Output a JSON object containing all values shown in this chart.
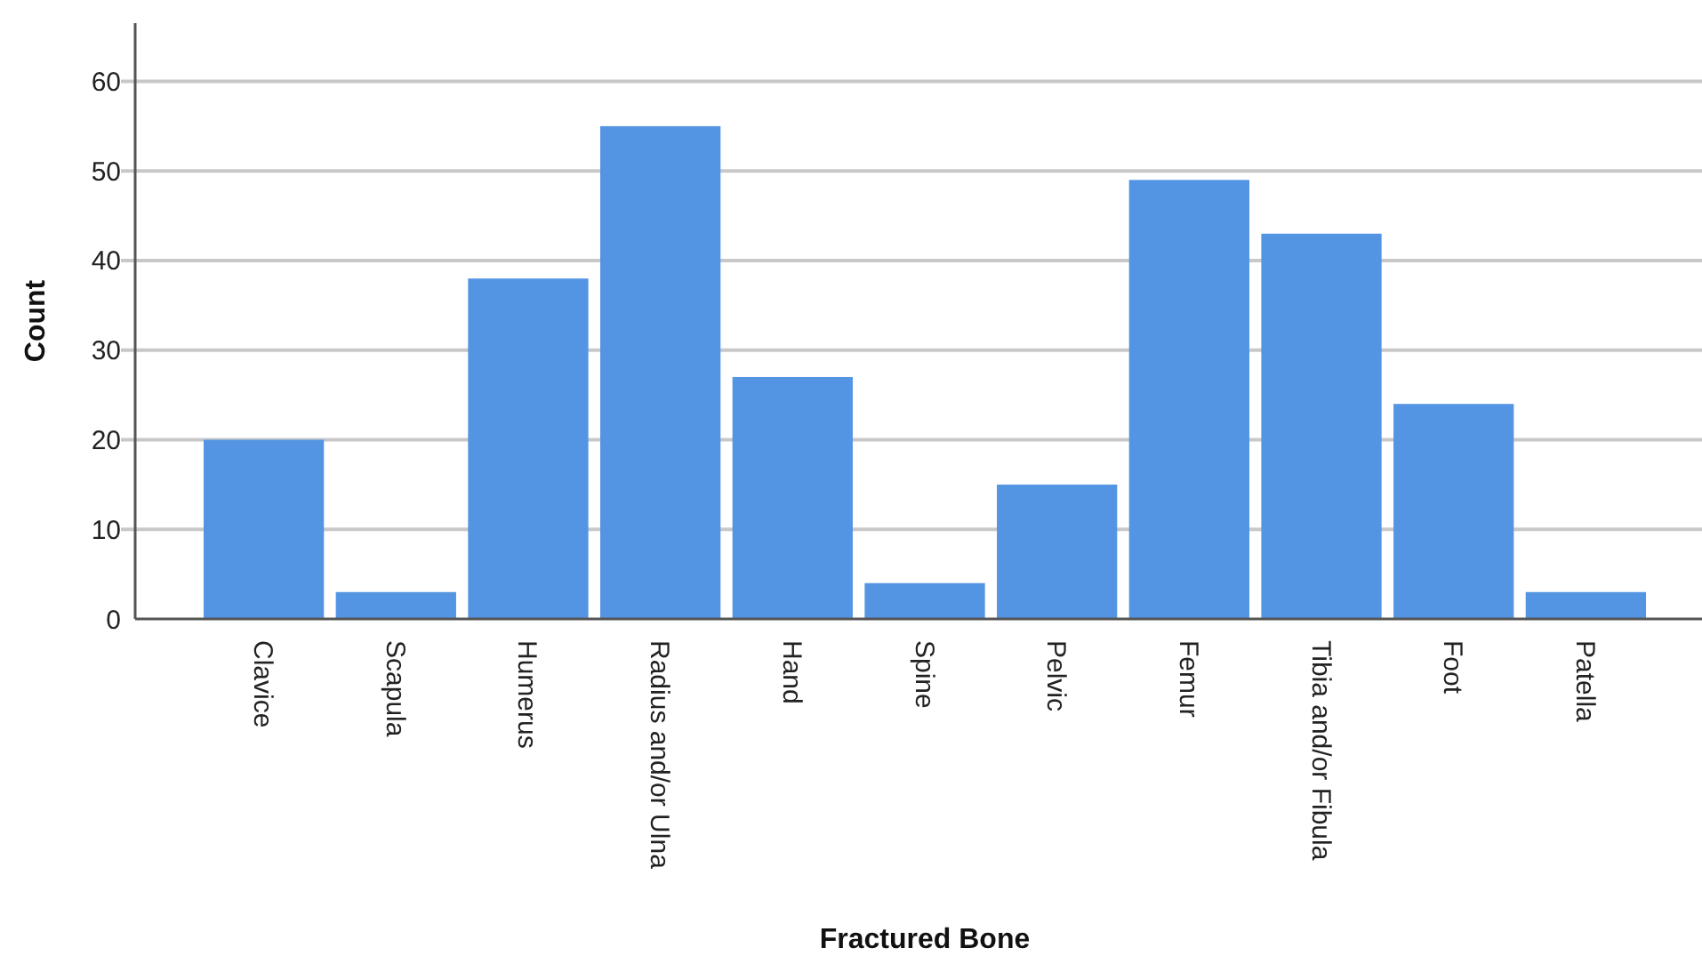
{
  "chart_data": {
    "type": "bar",
    "xlabel": "Fractured Bone",
    "ylabel": "Count",
    "categories": [
      "Clavice",
      "Scapula",
      "Humerus",
      "Radius and/or Ulna",
      "Hand",
      "Spine",
      "Pelvic",
      "Femur",
      "Tibia and/or Fibula",
      "Foot",
      "Patella"
    ],
    "values": [
      20,
      3,
      38,
      55,
      27,
      4,
      15,
      49,
      43,
      24,
      3
    ],
    "color": "#5495e3",
    "ylim": [
      0,
      66.5
    ],
    "yticks": [
      0,
      10,
      20,
      30,
      40,
      50,
      60
    ],
    "grid": "y"
  }
}
